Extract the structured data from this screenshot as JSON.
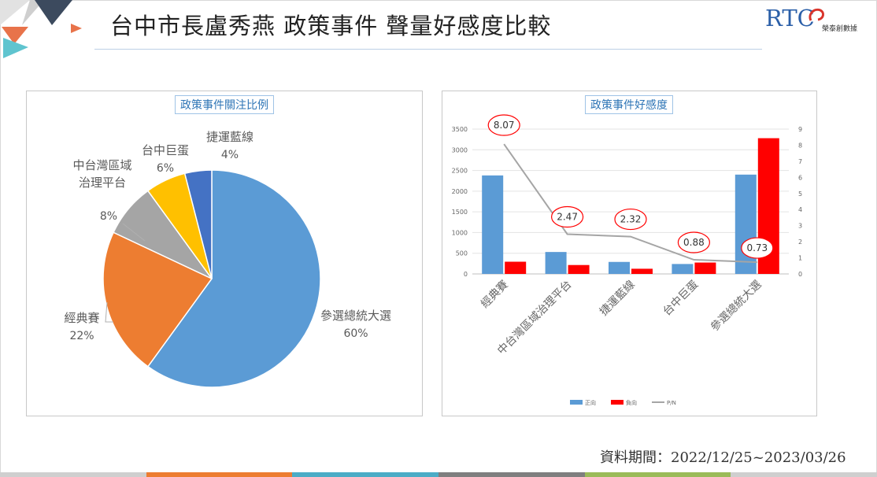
{
  "header": {
    "title": "台中市長盧秀燕 政策事件 聲量好感度比較"
  },
  "brand": {
    "letters": "RTC",
    "sub": "榮泰創數據",
    "colors": {
      "primary": "#2b5fa8",
      "accent": "#d9342b"
    }
  },
  "theme": {
    "pie_colors": [
      "#5b9bd5",
      "#ed7d31",
      "#a5a5a5",
      "#ffc000",
      "#4472c4"
    ],
    "positive_color": "#5b9bd5",
    "negative_color": "#ff0000",
    "ratio_line_color": "#a5a5a5",
    "stripe_colors": [
      "#cfcfcf",
      "#ed7d31",
      "#4bacc6",
      "#7f7f7f",
      "#9bbb59",
      "#cfcfcf"
    ]
  },
  "footer": {
    "source": "資料期間：2022/12/25~2023/03/26"
  },
  "chart_data": [
    {
      "type": "pie",
      "title": "政策事件關注比例",
      "slices": [
        {
          "label": "參選總統大選",
          "value": 60,
          "display": "60%"
        },
        {
          "label": "經典賽",
          "value": 22,
          "display": "22%"
        },
        {
          "label": "中台灣區域治理平台",
          "label_lines": [
            "中台灣區域",
            "治理平台"
          ],
          "value": 8,
          "display": "8%"
        },
        {
          "label": "台中巨蛋",
          "value": 6,
          "display": "6%"
        },
        {
          "label": "捷運藍線",
          "value": 4,
          "display": "4%"
        }
      ]
    },
    {
      "type": "bar",
      "title": "政策事件好感度",
      "categories": [
        "經典賽",
        "中台灣區域治理平台",
        "捷運藍線",
        "台中巨蛋",
        "參選總統大選"
      ],
      "series": [
        {
          "name": "正向",
          "type": "bar",
          "axis": "left",
          "values": [
            2380,
            530,
            290,
            240,
            2400
          ]
        },
        {
          "name": "負向",
          "type": "bar",
          "axis": "left",
          "values": [
            295,
            215,
            125,
            275,
            3280
          ]
        },
        {
          "name": "P/N",
          "type": "line",
          "axis": "right",
          "values": [
            8.07,
            2.47,
            2.32,
            0.88,
            0.73
          ],
          "labels": [
            "8.07",
            "2.47",
            "2.32",
            "0.88",
            "0.73"
          ]
        }
      ],
      "y_left": {
        "ticks": [
          "0",
          "500",
          "1000",
          "1500",
          "2000",
          "2500",
          "3000",
          "3500"
        ],
        "ylim": [
          0,
          3500
        ]
      },
      "y_right": {
        "ticks": [
          "0",
          "1",
          "2",
          "3",
          "4",
          "5",
          "6",
          "7",
          "8",
          "9"
        ],
        "ylim": [
          0,
          9
        ]
      },
      "grid": true,
      "legend": "bottom"
    }
  ]
}
